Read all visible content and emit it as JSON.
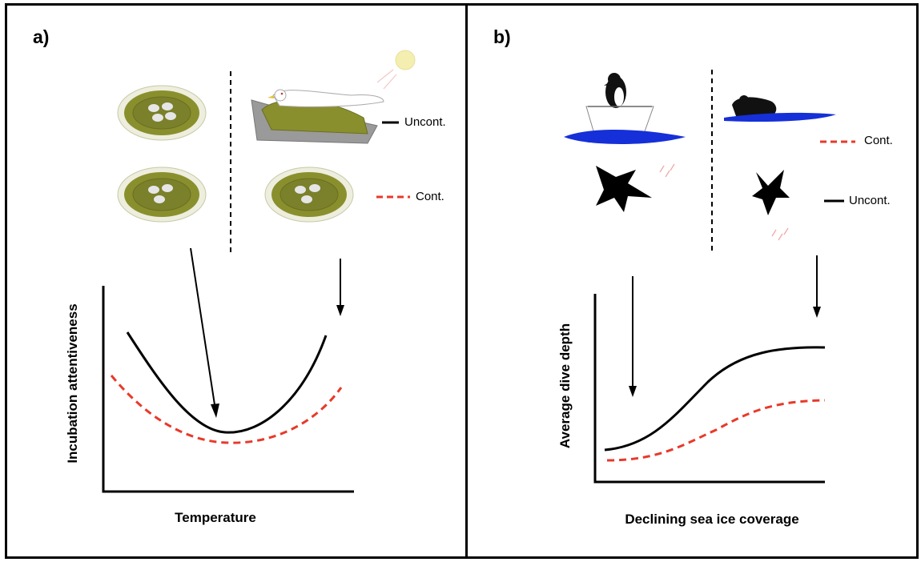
{
  "panel_a": {
    "label": "a)",
    "legend_uncont": "Uncont.",
    "legend_cont": "Cont.",
    "xlabel": "Temperature",
    "ylabel": "Incubation attentiveness"
  },
  "panel_b": {
    "label": "b)",
    "legend_cont": "Cont.",
    "legend_uncont": "Uncont.",
    "xlabel": "Declining sea ice coverage",
    "ylabel": "Average dive depth"
  },
  "colors": {
    "uncontrolled": "#000000",
    "controlled": "#e8392a",
    "nest": "#8a8f2e",
    "sea": "#1530d8",
    "rock": "#9a9a9a"
  }
}
